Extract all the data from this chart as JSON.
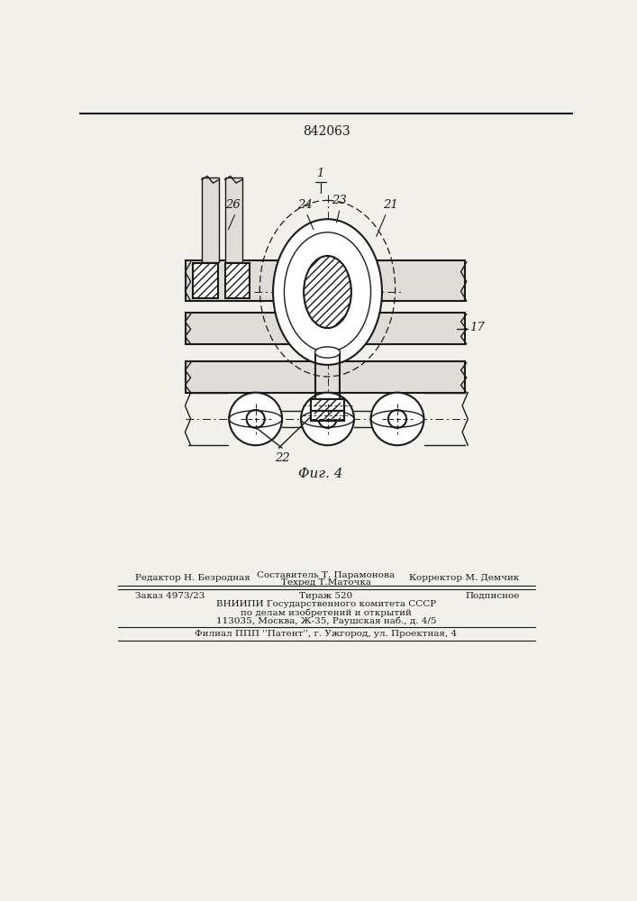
{
  "patent_number": "842063",
  "fig_label": "Φиг. 4",
  "background_color": "#f2f0eb",
  "line_color": "#1a1a1a",
  "footer": {
    "line1_left": "Редактор Н. Безродная",
    "line1_center_top": "Составитель Т. Парамонова",
    "line1_center_bot": "Техред Т.Маточка",
    "line1_right": "Корректор М. Демчик",
    "order": "Заказ 4973/23",
    "tirazh": "Тираж 520",
    "podpisnoe": "Подписное",
    "vnipi": "ВНИИПИ Государственного комитета СССР",
    "po_delam": "по делам изобретений и открытий",
    "address": "113035, Москва, Ж-35, Раушская наб., д. 4/5",
    "filial": "Филиал ППП ''Патент'', г. Ужгород, ул. Проектная, 4"
  }
}
